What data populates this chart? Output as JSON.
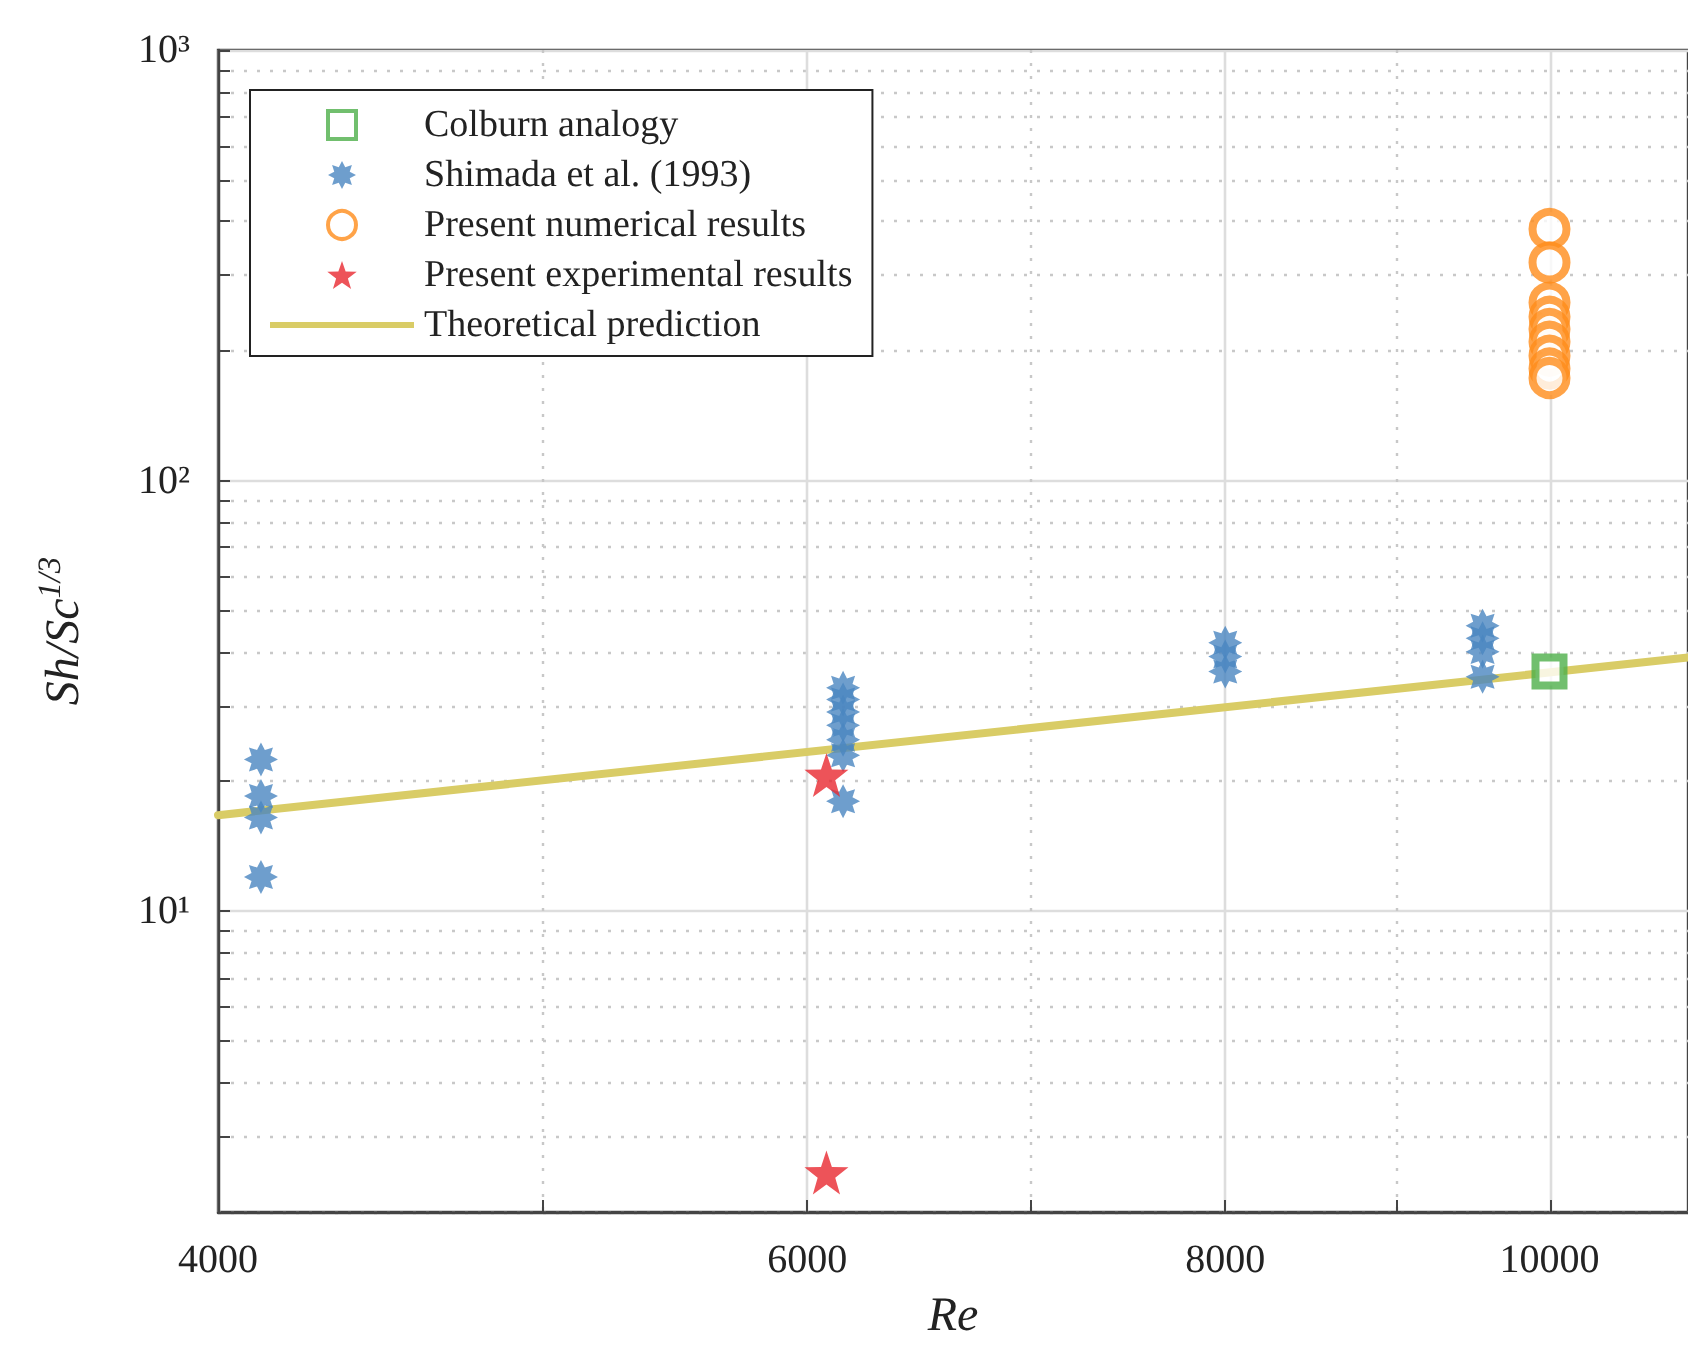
{
  "chart_data": {
    "type": "scatter",
    "xlabel": "Re",
    "ylabel": "Sh/Sc$^{1/3}$",
    "log": "xy",
    "grid": true,
    "legend": "top left",
    "xlim": [
      4000,
      11000
    ],
    "xticks": [
      4000,
      {
        "value": 5000,
        "label": null
      },
      6000,
      {
        "value": 7000,
        "label": null
      },
      8000,
      {
        "value": 9000,
        "label": null
      },
      10000
    ],
    "ylim": [
      2,
      1000
    ],
    "yticks": [
      {
        "value": 2,
        "label": null
      },
      {
        "value": 3,
        "label": null
      },
      {
        "value": 4,
        "label": null
      },
      {
        "value": 5,
        "label": null
      },
      {
        "value": 6,
        "label": null
      },
      {
        "value": 7,
        "label": null
      },
      {
        "value": 8,
        "label": null
      },
      {
        "value": 9,
        "label": null
      },
      {
        "value": 10,
        "label": "10¹"
      },
      {
        "value": 20,
        "label": null
      },
      {
        "value": 30,
        "label": null
      },
      {
        "value": 40,
        "label": null
      },
      {
        "value": 50,
        "label": null
      },
      {
        "value": 60,
        "label": null
      },
      {
        "value": 70,
        "label": null
      },
      {
        "value": 80,
        "label": null
      },
      {
        "value": 90,
        "label": null
      },
      {
        "value": 100,
        "label": "10²"
      },
      {
        "value": 200,
        "label": null
      },
      {
        "value": 300,
        "label": null
      },
      {
        "value": 400,
        "label": null
      },
      {
        "value": 500,
        "label": null
      },
      {
        "value": 600,
        "label": null
      },
      {
        "value": 700,
        "label": null
      },
      {
        "value": 800,
        "label": null
      },
      {
        "value": 900,
        "label": null
      },
      {
        "value": 1000,
        "label": "10³"
      }
    ],
    "series": [
      {
        "name": "Colburn analogy",
        "color": "#4daf4a",
        "marker": "square",
        "x": [
          10000
        ],
        "values": [
          36
        ]
      },
      {
        "name": "Shimada et al. (1993)",
        "color": "#4a86c0",
        "marker": "cross",
        "x": [
          4120,
          4120,
          4120,
          4120,
          6150,
          6150,
          6150,
          6150,
          6150,
          6150,
          6150,
          8000,
          8000,
          8000,
          9550,
          9550,
          9550,
          9550
        ],
        "values": [
          22.5,
          18.5,
          16.5,
          12,
          33,
          31,
          29,
          27,
          25,
          23,
          18,
          42,
          39,
          36,
          46,
          43,
          40,
          35
        ]
      },
      {
        "name": "Present numerical results",
        "color": "#ff8c1a",
        "marker": "circle",
        "x": [
          10000,
          10000,
          10000,
          10000,
          10000,
          10000,
          10000,
          10000,
          10000
        ],
        "values": [
          384,
          321,
          259,
          240,
          225,
          210,
          195,
          182,
          173
        ]
      },
      {
        "name": "Present experimental results",
        "color": "#e8282f",
        "marker": "star",
        "x": [
          6080,
          6080
        ],
        "values": [
          20.7,
          2.47
        ]
      },
      {
        "name": "Theoretical prediction",
        "type": "line",
        "color": "#d9cc66",
        "marker": "none",
        "line_style": "solid",
        "x": [
          4000,
          11000
        ],
        "values": [
          16.7,
          38.8
        ]
      }
    ]
  }
}
